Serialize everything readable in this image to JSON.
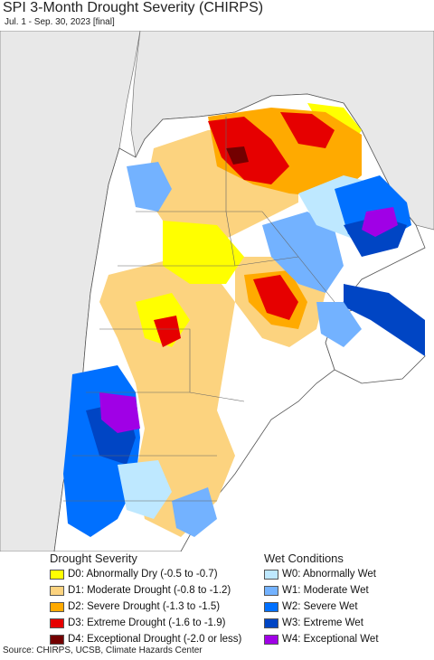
{
  "title": "SPI 3-Month Drought Severity (CHIRPS)",
  "subtitle": "Jul. 1 - Sep. 30, 2023 [final]",
  "legend": {
    "drought_heading": "Drought Severity",
    "wet_heading": "Wet Conditions",
    "drought": [
      {
        "label": "D0: Abnormally Dry (-0.5 to -0.7)",
        "color": "#ffff00"
      },
      {
        "label": "D1: Moderate Drought (-0.8 to -1.2)",
        "color": "#fcd37f"
      },
      {
        "label": "D2: Severe Drought (-1.3 to -1.5)",
        "color": "#ffaa00"
      },
      {
        "label": "D3: Extreme Drought (-1.6 to -1.9)",
        "color": "#e60000"
      },
      {
        "label": "D4: Exceptional Drought (-2.0 or less)",
        "color": "#730000"
      }
    ],
    "wet": [
      {
        "label": "W0: Abnormally Wet",
        "color": "#bee8ff"
      },
      {
        "label": "W1: Moderate Wet",
        "color": "#73b2ff"
      },
      {
        "label": "W2: Severe Wet",
        "color": "#0070ff"
      },
      {
        "label": "W3: Extreme Wet",
        "color": "#0045c4"
      },
      {
        "label": "W4: Exceptional Wet",
        "color": "#a000e6"
      }
    ]
  },
  "source": "Source: CHIRPS, UCSB, Climate Hazards Center",
  "map_colors": {
    "ocean": "#ffffff",
    "outside_land": "#e8e8e8",
    "borders": "#555555",
    "no_anomaly": "#ffffff"
  }
}
